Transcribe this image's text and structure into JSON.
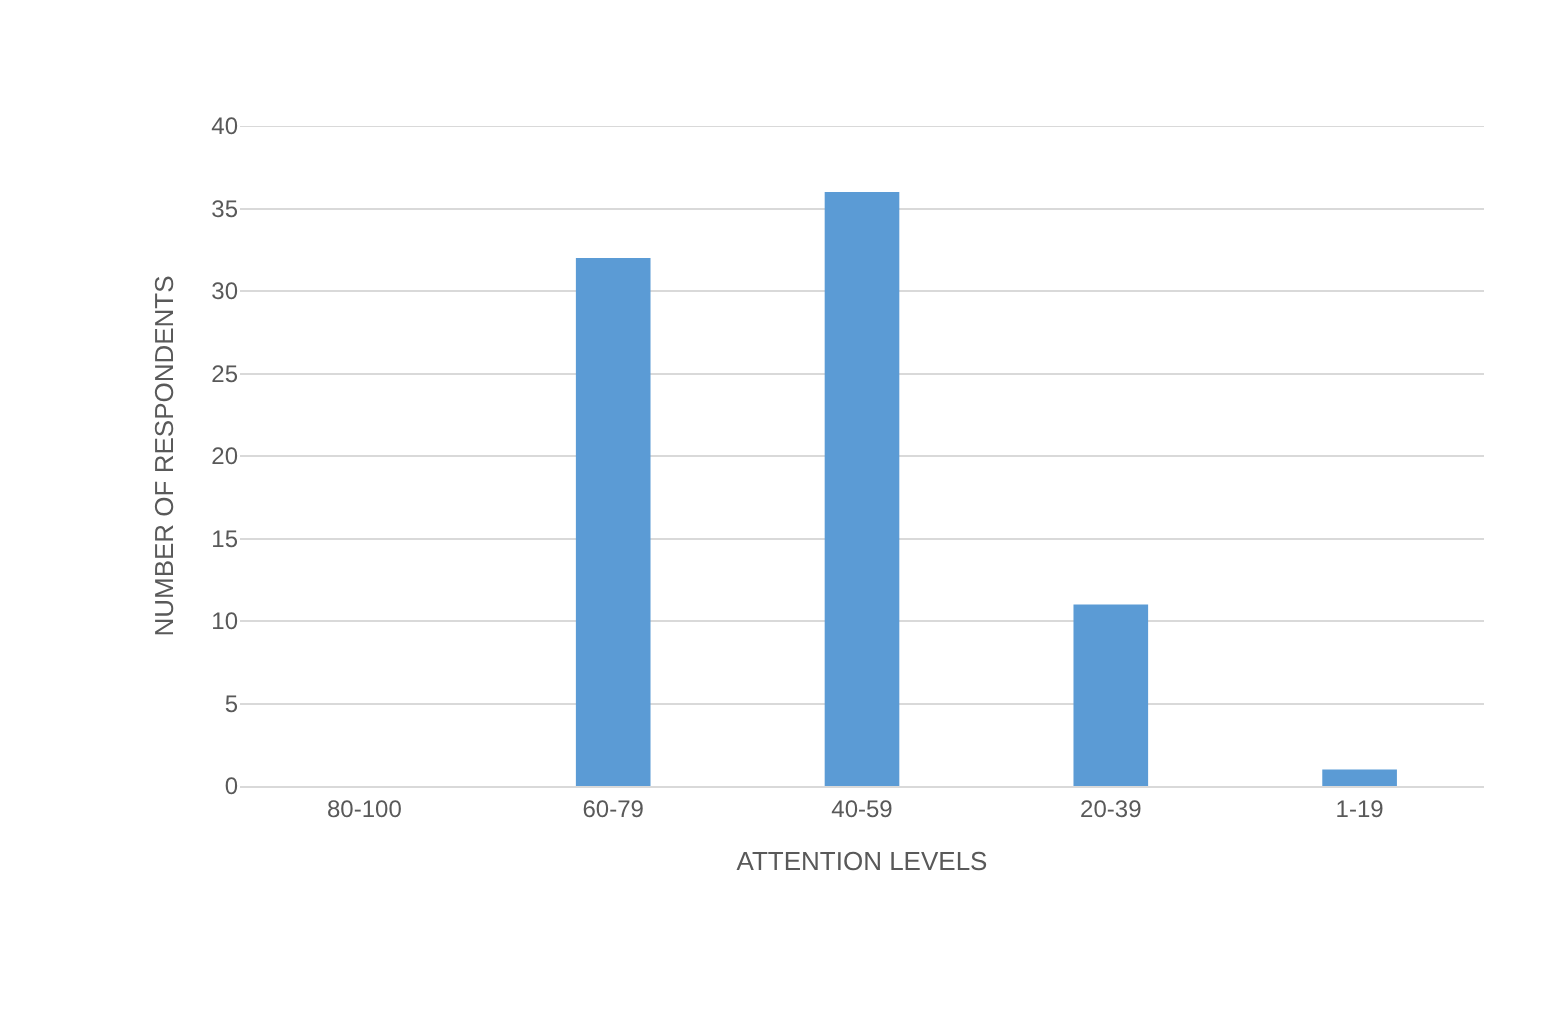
{
  "chart_data": {
    "type": "bar",
    "xlabel": "ATTENTION LEVELS",
    "ylabel": "NUMBER OF RESPONDENTS",
    "categories": [
      "80-100",
      "60-79",
      "40-59",
      "20-39",
      "1-19"
    ],
    "values": [
      0,
      32,
      36,
      11,
      1
    ],
    "color": "#5b9bd5",
    "ylim": [
      0,
      40
    ],
    "yticks": [
      0,
      5,
      10,
      15,
      20,
      25,
      30,
      35,
      40
    ],
    "grid": "y"
  }
}
